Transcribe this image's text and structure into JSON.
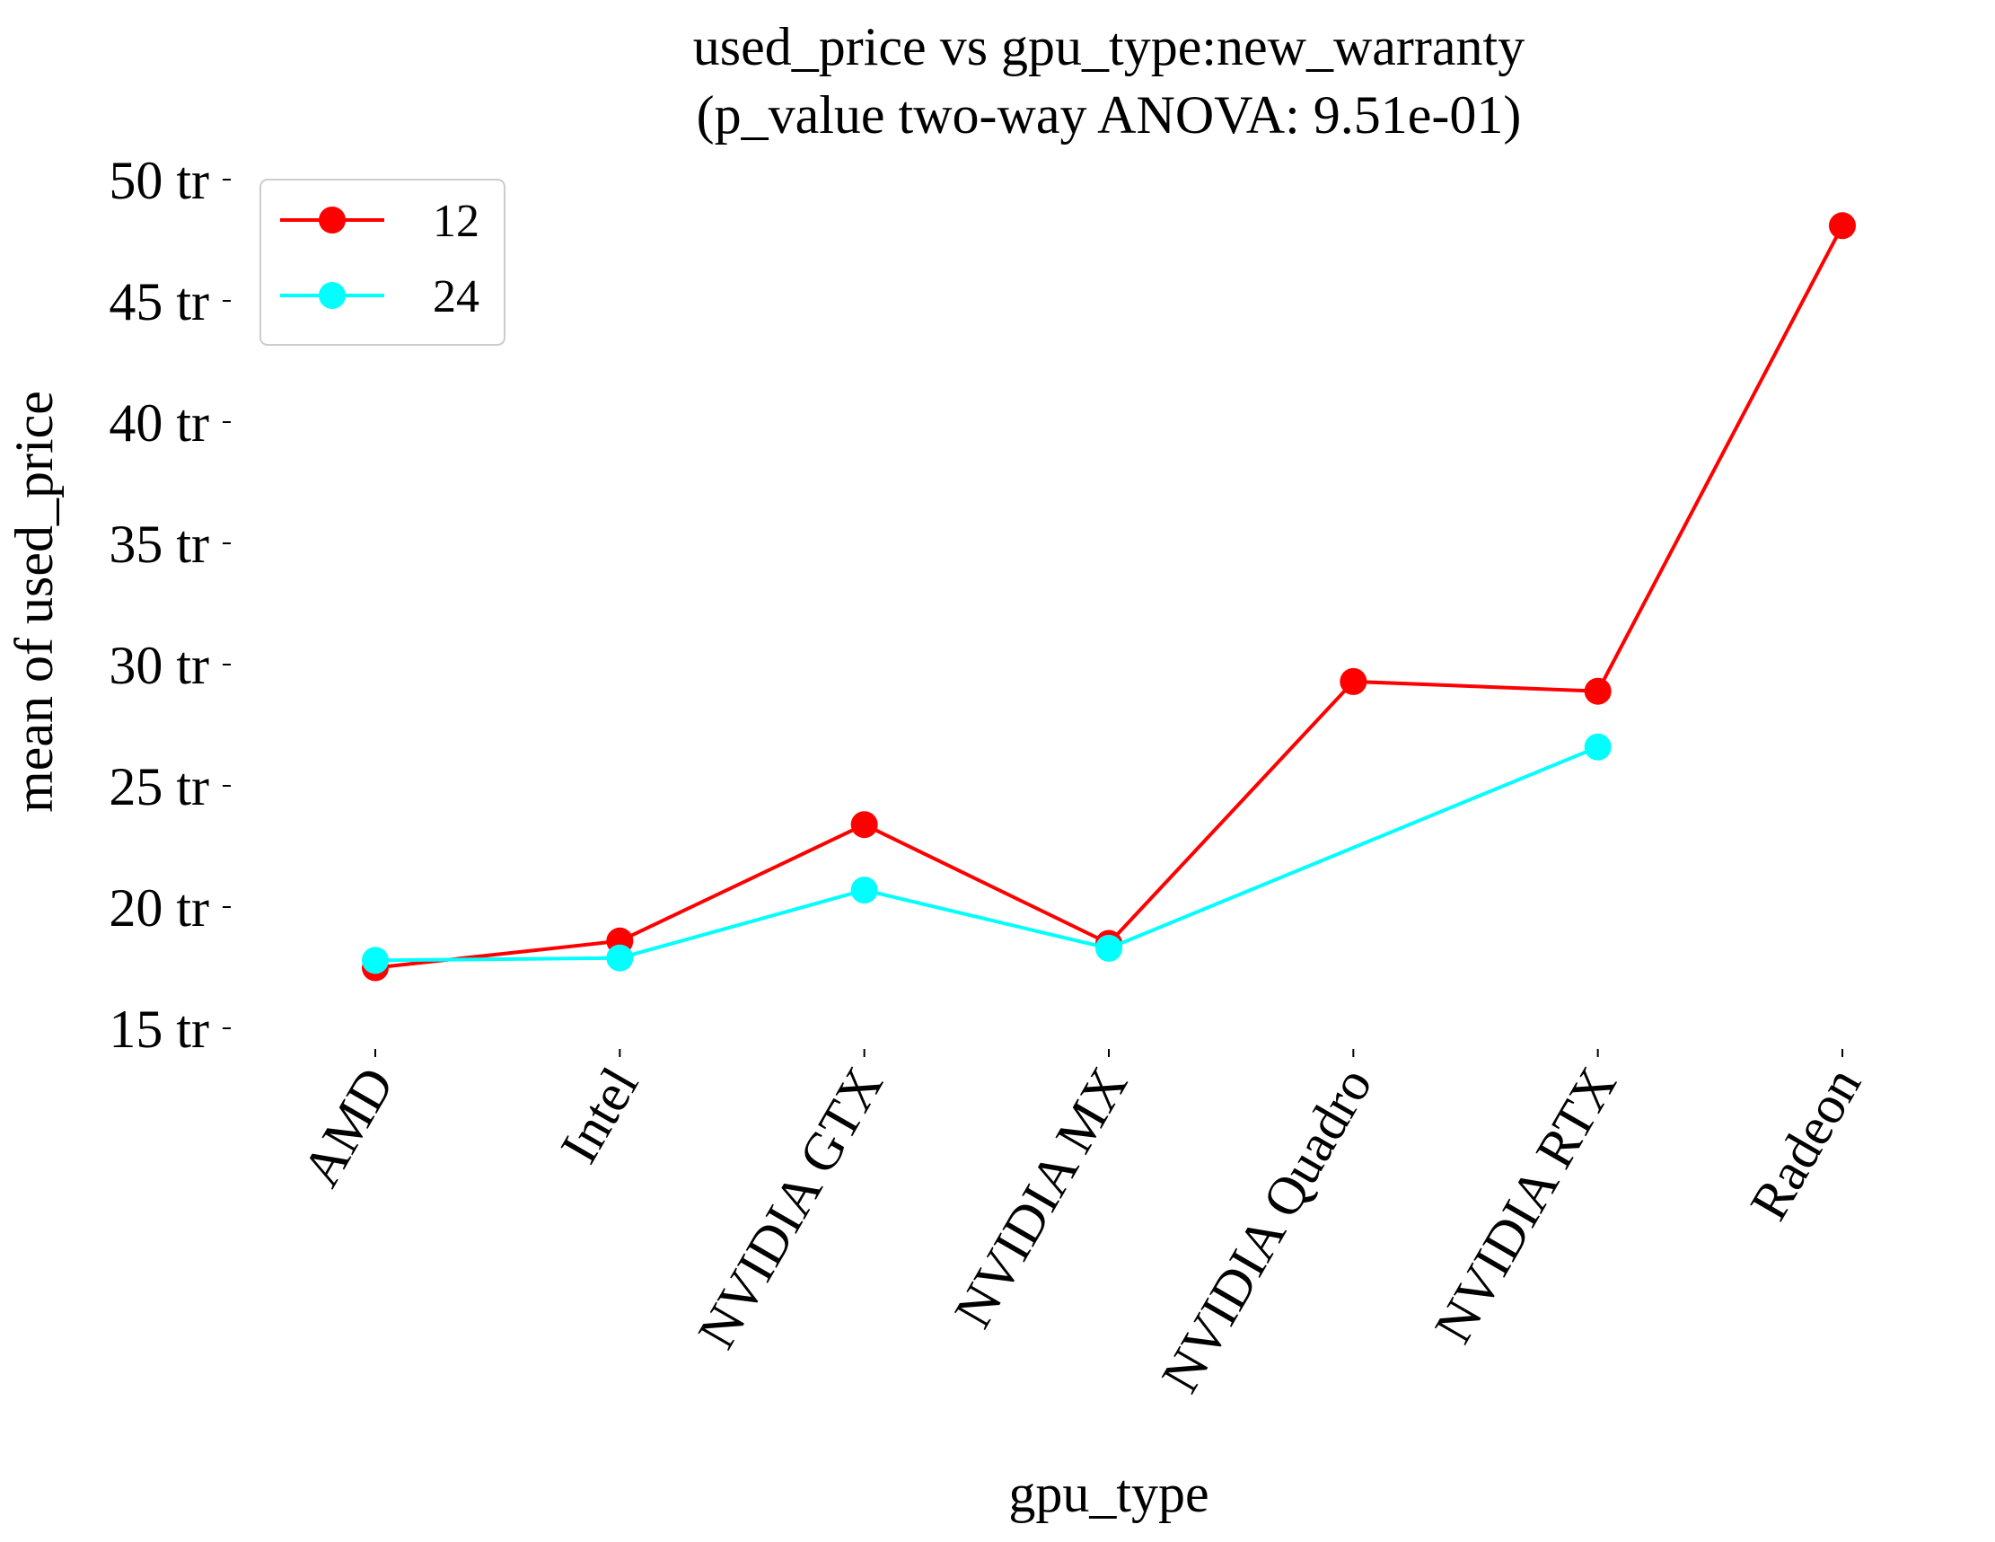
{
  "chart_data": {
    "type": "line",
    "title": "used_price vs gpu_type:new_warranty",
    "subtitle": "(p_value two-way ANOVA: 9.51e-01)",
    "xlabel": "gpu_type",
    "ylabel": "mean of used_price",
    "categories": [
      "AMD",
      "Intel",
      "NVIDIA GTX",
      "NVIDIA MX",
      "NVIDIA Quadro",
      "NVIDIA RTX",
      "Radeon"
    ],
    "ylim": [
      15,
      50
    ],
    "yticks": [
      {
        "value": 15,
        "label": "15 tr"
      },
      {
        "value": 20,
        "label": "20 tr"
      },
      {
        "value": 25,
        "label": "25 tr"
      },
      {
        "value": 30,
        "label": "30 tr"
      },
      {
        "value": 35,
        "label": "35 tr"
      },
      {
        "value": 40,
        "label": "40 tr"
      },
      {
        "value": 45,
        "label": "45 tr"
      },
      {
        "value": 50,
        "label": "50 tr"
      }
    ],
    "grid": false,
    "legend": {
      "position": "top-left"
    },
    "series": [
      {
        "name": "12",
        "color": "#ff0000",
        "values": [
          17.5,
          18.6,
          23.4,
          18.5,
          29.3,
          28.9,
          48.1
        ]
      },
      {
        "name": "24",
        "color": "#00ffff",
        "values": [
          17.8,
          17.9,
          20.7,
          18.3,
          null,
          26.6,
          null
        ]
      }
    ]
  }
}
